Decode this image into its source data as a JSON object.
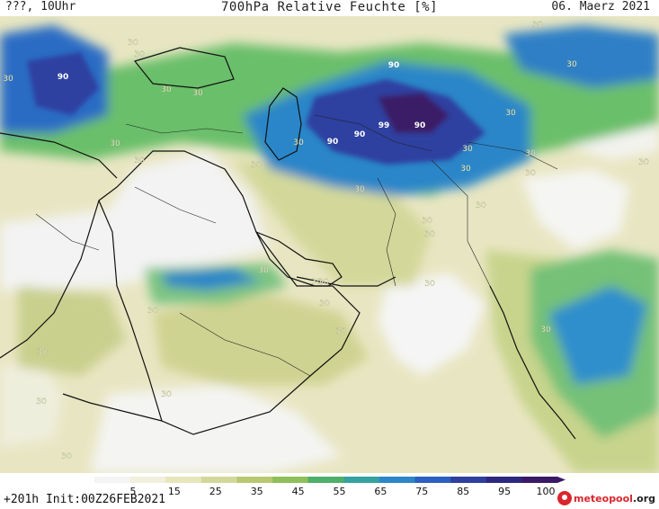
{
  "header": {
    "left": "???, 10Uhr",
    "title": "700hPa Relative Feuchte [%]",
    "date": "06. Maerz 2021"
  },
  "footer": {
    "run_info": "+201h Init:00Z26FEB2021",
    "logo_brand": "meteo",
    "logo_suffix": "pool",
    "logo_tld": ".org"
  },
  "colorbar": {
    "labels": [
      "5",
      "15",
      "25",
      "35",
      "45",
      "55",
      "65",
      "75",
      "85",
      "95",
      "100"
    ],
    "colors": [
      "#f4f4f4",
      "#f1f0dc",
      "#e7e6bc",
      "#d3d89a",
      "#b8c870",
      "#8fbf5a",
      "#4fae6a",
      "#33a2a0",
      "#2c86c8",
      "#2b5fc0",
      "#2e3fa0",
      "#2e2780",
      "#3a1a66"
    ]
  },
  "map_labels": [
    {
      "text": "90",
      "tone": "dark"
    },
    {
      "text": "90",
      "tone": "dark"
    },
    {
      "text": "90",
      "tone": "dark"
    },
    {
      "text": "90",
      "tone": "dark"
    },
    {
      "text": "99",
      "tone": "dark"
    },
    {
      "text": "90",
      "tone": "dark"
    },
    {
      "text": "30",
      "tone": "light"
    },
    {
      "text": "30",
      "tone": "light"
    },
    {
      "text": "30",
      "tone": "light"
    },
    {
      "text": "30",
      "tone": "light"
    },
    {
      "text": "30",
      "tone": "light"
    },
    {
      "text": "30",
      "tone": "light"
    },
    {
      "text": "30",
      "tone": "light"
    },
    {
      "text": "30",
      "tone": "light"
    },
    {
      "text": "30",
      "tone": "light"
    },
    {
      "text": "30",
      "tone": "light"
    },
    {
      "text": "30",
      "tone": "light"
    },
    {
      "text": "30",
      "tone": "light"
    },
    {
      "text": "30",
      "tone": "light"
    },
    {
      "text": "30",
      "tone": "light"
    },
    {
      "text": "30",
      "tone": "light"
    },
    {
      "text": "30",
      "tone": "light"
    },
    {
      "text": "30",
      "tone": "light"
    },
    {
      "text": "30",
      "tone": "light"
    },
    {
      "text": "30",
      "tone": "light"
    },
    {
      "text": "30",
      "tone": "light"
    },
    {
      "text": "30",
      "tone": "light"
    },
    {
      "text": "30",
      "tone": "light"
    },
    {
      "text": "30",
      "tone": "light"
    },
    {
      "text": "30",
      "tone": "light"
    },
    {
      "text": "30",
      "tone": "light"
    },
    {
      "text": "30",
      "tone": "light"
    },
    {
      "text": "30",
      "tone": "light"
    },
    {
      "text": "30",
      "tone": "light"
    },
    {
      "text": "30",
      "tone": "light"
    },
    {
      "text": "30",
      "tone": "light"
    },
    {
      "text": "30",
      "tone": "light"
    },
    {
      "text": "30",
      "tone": "light"
    },
    {
      "text": "30",
      "tone": "light"
    }
  ]
}
